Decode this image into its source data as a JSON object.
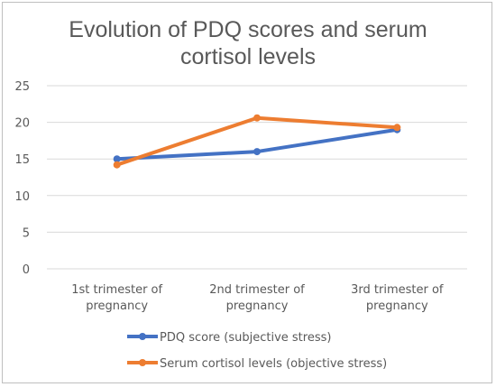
{
  "chart_data": {
    "type": "line",
    "title_lines": [
      "Evolution of PDQ scores and serum",
      "cortisol levels"
    ],
    "categories": [
      [
        "1st trimester of",
        "pregnancy"
      ],
      [
        "2nd trimester of",
        "pregnancy"
      ],
      [
        "3rd trimester of",
        "pregnancy"
      ]
    ],
    "series": [
      {
        "name": "PDQ score (subjective stress)",
        "values": [
          15,
          16,
          19
        ],
        "color": "#4472C4"
      },
      {
        "name": "Serum cortisol levels (objective stress)",
        "values": [
          14.2,
          20.6,
          19.3
        ],
        "color": "#ED7D31"
      }
    ],
    "y_ticks": [
      "0",
      "5",
      "10",
      "15",
      "20",
      "25"
    ],
    "ylim": [
      0,
      25
    ],
    "grid": true,
    "legend_position": "bottom"
  }
}
